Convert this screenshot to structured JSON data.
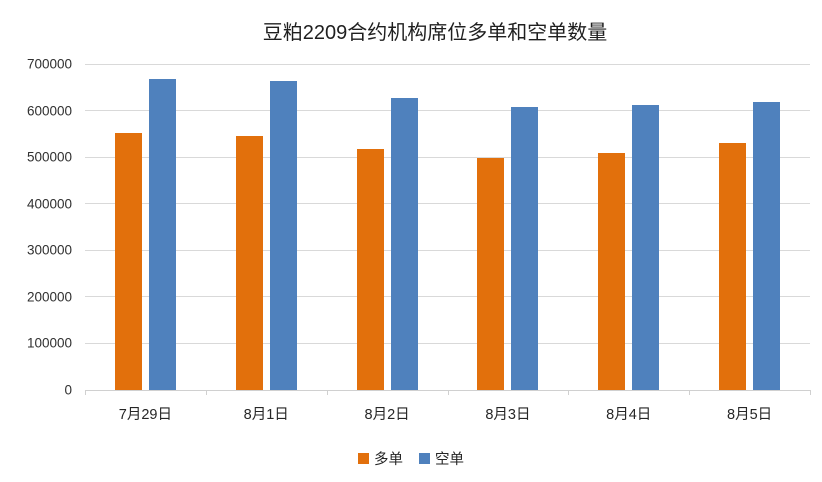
{
  "chart_data": {
    "type": "bar",
    "title": "豆粕2209合约机构席位多单和空单数量",
    "categories": [
      "7月29日",
      "8月1日",
      "8月2日",
      "8月3日",
      "8月4日",
      "8月5日"
    ],
    "series": [
      {
        "name": "多单",
        "color": "#E2700C",
        "values": [
          551000,
          546000,
          517000,
          498000,
          508000,
          530000
        ]
      },
      {
        "name": "空单",
        "color": "#4F81BD",
        "values": [
          667000,
          664000,
          626000,
          607000,
          613000,
          618000
        ]
      }
    ],
    "xlabel": "",
    "ylabel": "",
    "ylim": [
      0,
      700000
    ],
    "ytick_step": 100000,
    "ytick_labels": [
      "0",
      "100000",
      "200000",
      "300000",
      "400000",
      "500000",
      "600000",
      "700000"
    ],
    "grid": true,
    "legend_position": "bottom"
  },
  "colors": {
    "background": "#FFFFFF",
    "gridline": "#D9D9D9",
    "axis": "#D0D0D0",
    "text": "#262626",
    "series_long": "#E2700C",
    "series_short": "#4F81BD"
  }
}
